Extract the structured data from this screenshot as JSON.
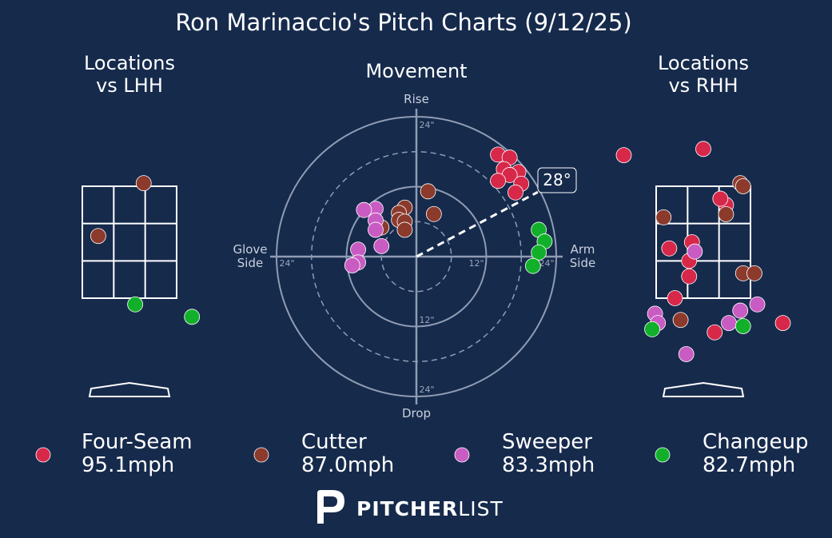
{
  "title": "Ron Marinaccio's Pitch Charts (9/12/25)",
  "brand": {
    "bold": "PITCHER",
    "light": "LIST"
  },
  "colors": {
    "background": "#162a4c",
    "four_seam": "#d7284a",
    "cutter": "#8b3a2c",
    "sweeper": "#c95cc2",
    "changeup": "#12b02a"
  },
  "chart_data": [
    {
      "type": "scatter",
      "title": "Locations\nvs LHH",
      "title_lines": [
        "Locations",
        "vs LHH"
      ],
      "zone": {
        "x": [
          -0.83,
          0.83
        ],
        "z": [
          1.6,
          3.4
        ],
        "grid": "3x3"
      },
      "series": [
        {
          "name": "Four-Seam",
          "color": "#d7284a",
          "points": []
        },
        {
          "name": "Cutter",
          "color": "#8b3a2c",
          "points": [
            [
              0.25,
              3.45
            ],
            [
              -0.55,
              2.6
            ]
          ]
        },
        {
          "name": "Sweeper",
          "color": "#c95cc2",
          "points": []
        },
        {
          "name": "Changeup",
          "color": "#12b02a",
          "points": [
            [
              0.1,
              1.5
            ],
            [
              1.1,
              1.3
            ]
          ]
        }
      ]
    },
    {
      "type": "scatter",
      "title": "Movement",
      "axis_labels": {
        "top": "Rise",
        "bottom": "Drop",
        "left": "Glove\nSide",
        "right": "Arm\nSide",
        "left_lines": [
          "Glove",
          "Side"
        ],
        "right_lines": [
          "Arm",
          "Side"
        ]
      },
      "rings": [
        6,
        12,
        18,
        24
      ],
      "ring_labels": [
        "24\"",
        "12\"",
        "12\"",
        "24\""
      ],
      "arm_angle_label": "28°",
      "arm_angle_deg": 28,
      "xlim": [
        -24,
        24
      ],
      "ylim": [
        -24,
        24
      ],
      "series": [
        {
          "name": "Four-Seam",
          "color": "#d7284a",
          "points": [
            [
              14,
              17.5
            ],
            [
              16,
              17
            ],
            [
              15,
              15
            ],
            [
              17.5,
              14.5
            ],
            [
              16,
              14
            ],
            [
              14,
              13
            ],
            [
              18,
              12.5
            ],
            [
              17,
              11
            ]
          ]
        },
        {
          "name": "Cutter",
          "color": "#8b3a2c",
          "points": [
            [
              2,
              11.2
            ],
            [
              3,
              7.3
            ],
            [
              -2,
              8.4
            ],
            [
              -3,
              7.5
            ],
            [
              -3,
              6.3
            ],
            [
              -2,
              6
            ],
            [
              -6,
              5
            ],
            [
              -2,
              4.6
            ]
          ]
        },
        {
          "name": "Sweeper",
          "color": "#c95cc2",
          "points": [
            [
              -7,
              8.2
            ],
            [
              -9,
              8
            ],
            [
              -7,
              6.2
            ],
            [
              -7,
              4.6
            ],
            [
              -6,
              1.8
            ],
            [
              -10,
              1.2
            ],
            [
              -10,
              -1
            ],
            [
              -11,
              -1.5
            ]
          ]
        },
        {
          "name": "Changeup",
          "color": "#12b02a",
          "points": [
            [
              21,
              4.6
            ],
            [
              22,
              2.6
            ],
            [
              21,
              0.7
            ],
            [
              20,
              -1.6
            ]
          ]
        }
      ]
    },
    {
      "type": "scatter",
      "title": "Locations\nvs RHH",
      "title_lines": [
        "Locations",
        "vs RHH"
      ],
      "zone": {
        "x": [
          -0.83,
          0.83
        ],
        "z": [
          1.6,
          3.4
        ],
        "grid": "3x3"
      },
      "series": [
        {
          "name": "Four-Seam",
          "color": "#d7284a",
          "points": [
            [
              -1.4,
              3.9
            ],
            [
              0.0,
              4.0
            ],
            [
              0.4,
              3.1
            ],
            [
              0.3,
              3.2
            ],
            [
              -0.2,
              2.5
            ],
            [
              -0.6,
              2.4
            ],
            [
              -0.25,
              2.2
            ],
            [
              -0.25,
              1.95
            ],
            [
              -0.5,
              1.6
            ],
            [
              0.2,
              1.05
            ],
            [
              1.4,
              1.2
            ]
          ]
        },
        {
          "name": "Cutter",
          "color": "#8b3a2c",
          "points": [
            [
              0.65,
              3.45
            ],
            [
              0.7,
              3.4
            ],
            [
              0.4,
              2.95
            ],
            [
              -0.7,
              2.9
            ],
            [
              0.7,
              2.0
            ],
            [
              0.9,
              2.0
            ],
            [
              -0.4,
              1.25
            ]
          ]
        },
        {
          "name": "Sweeper",
          "color": "#c95cc2",
          "points": [
            [
              -0.15,
              2.35
            ],
            [
              0.95,
              1.5
            ],
            [
              0.65,
              1.4
            ],
            [
              -0.85,
              1.35
            ],
            [
              -0.8,
              1.2
            ],
            [
              0.45,
              1.2
            ],
            [
              -0.3,
              0.7
            ]
          ]
        },
        {
          "name": "Changeup",
          "color": "#12b02a",
          "points": [
            [
              -0.9,
              1.1
            ],
            [
              0.7,
              1.15
            ]
          ]
        }
      ]
    }
  ],
  "legend": [
    {
      "name": "Four-Seam",
      "speed": "95.1mph",
      "color": "#d7284a"
    },
    {
      "name": "Cutter",
      "speed": "87.0mph",
      "color": "#8b3a2c"
    },
    {
      "name": "Sweeper",
      "speed": "83.3mph",
      "color": "#c95cc2"
    },
    {
      "name": "Changeup",
      "speed": "82.7mph",
      "color": "#12b02a"
    }
  ]
}
